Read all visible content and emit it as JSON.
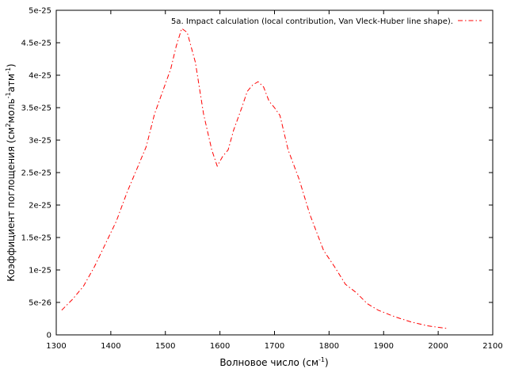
{
  "chart_data": {
    "type": "line",
    "title": "",
    "xlabel": {
      "prefix": "Волновое число (см",
      "sup": "-1",
      "suffix": ")"
    },
    "ylabel": {
      "part1": "Коэффициент поглощения (см",
      "sup1": "2",
      "part2": "моль",
      "sup2": "-1",
      "part3": "атм",
      "sup3": "-1",
      "part4": ")"
    },
    "xlim": [
      1300,
      2100
    ],
    "ylim": [
      0,
      5e-25
    ],
    "x_ticks": [
      1300,
      1400,
      1500,
      1600,
      1700,
      1800,
      1900,
      2000,
      2100
    ],
    "x_tick_labels": [
      "1300",
      "1400",
      "1500",
      "1600",
      "1700",
      "1800",
      "1900",
      "2000",
      "2100"
    ],
    "y_ticks": [
      0,
      5e-26,
      1e-25,
      1.5e-25,
      2e-25,
      2.5e-25,
      3e-25,
      3.5e-25,
      4e-25,
      4.5e-25,
      5e-25
    ],
    "y_tick_labels": [
      "0",
      "5e-26",
      "1e-25",
      "1.5e-25",
      "2e-25",
      "2.5e-25",
      "3e-25",
      "3.5e-25",
      "4e-25",
      "4.5e-25",
      "5e-25"
    ],
    "grid": false,
    "legend_position": "top-right",
    "series": [
      {
        "name": "5a. Impact calculation  (local contribution, Van Vleck-Huber line shape).",
        "color": "#ff0000",
        "line_style": "dash-dot",
        "x": [
          1310,
          1330,
          1350,
          1370,
          1390,
          1410,
          1430,
          1450,
          1465,
          1480,
          1495,
          1510,
          1520,
          1530,
          1540,
          1555,
          1570,
          1585,
          1595,
          1605,
          1615,
          1625,
          1640,
          1650,
          1660,
          1670,
          1680,
          1690,
          1700,
          1710,
          1725,
          1745,
          1765,
          1790,
          1810,
          1830,
          1850,
          1870,
          1890,
          1920,
          1950,
          1980,
          2015
        ],
        "y": [
          3.8e-26,
          5.5e-26,
          7.5e-26,
          1.05e-25,
          1.4e-25,
          1.75e-25,
          2.2e-25,
          2.6e-25,
          2.9e-25,
          3.4e-25,
          3.75e-25,
          4.1e-25,
          4.45e-25,
          4.72e-25,
          4.66e-25,
          4.2e-25,
          3.4e-25,
          2.85e-25,
          2.6e-25,
          2.75e-25,
          2.85e-25,
          3.15e-25,
          3.5e-25,
          3.75e-25,
          3.85e-25,
          3.9e-25,
          3.82e-25,
          3.6e-25,
          3.5e-25,
          3.38e-25,
          2.85e-25,
          2.4e-25,
          1.85e-25,
          1.3e-25,
          1.05e-25,
          7.8e-26,
          6.5e-26,
          4.8e-26,
          3.8e-26,
          2.8e-26,
          2e-26,
          1.4e-26,
          1e-26
        ]
      }
    ]
  }
}
